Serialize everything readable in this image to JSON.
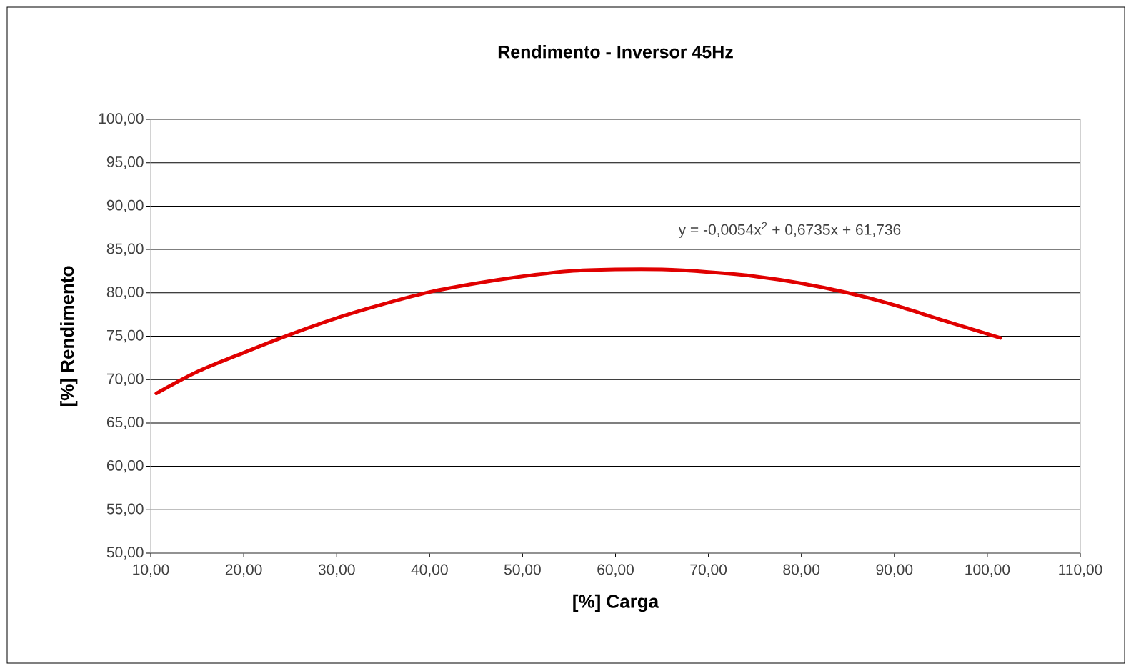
{
  "chart_data": {
    "type": "line",
    "title": "Rendimento - Inversor 45Hz",
    "xlabel": "[%] Carga",
    "ylabel": "[%] Rendimento",
    "x": [
      10.6,
      15,
      20,
      25,
      30,
      35,
      40,
      45,
      50,
      55,
      60,
      65,
      70,
      75,
      80,
      85,
      90,
      95,
      101.4
    ],
    "series": [
      {
        "color": "#e00000",
        "values": [
          68.4,
          70.9,
          73.1,
          75.2,
          77.1,
          78.7,
          80.1,
          81.1,
          81.9,
          82.5,
          82.7,
          82.7,
          82.4,
          81.9,
          81.1,
          80.0,
          78.6,
          76.9,
          74.8
        ]
      }
    ],
    "xlim": [
      10,
      110
    ],
    "ylim": [
      50,
      100
    ],
    "xticks": [
      {
        "value": 10,
        "label": "10,00"
      },
      {
        "value": 20,
        "label": "20,00"
      },
      {
        "value": 30,
        "label": "30,00"
      },
      {
        "value": 40,
        "label": "40,00"
      },
      {
        "value": 50,
        "label": "50,00"
      },
      {
        "value": 60,
        "label": "60,00"
      },
      {
        "value": 70,
        "label": "70,00"
      },
      {
        "value": 80,
        "label": "80,00"
      },
      {
        "value": 90,
        "label": "90,00"
      },
      {
        "value": 100,
        "label": "100,00"
      },
      {
        "value": 110,
        "label": "110,00"
      }
    ],
    "yticks": [
      {
        "value": 50,
        "label": "50,00"
      },
      {
        "value": 55,
        "label": "55,00"
      },
      {
        "value": 60,
        "label": "60,00"
      },
      {
        "value": 65,
        "label": "65,00"
      },
      {
        "value": 70,
        "label": "70,00"
      },
      {
        "value": 75,
        "label": "75,00"
      },
      {
        "value": 80,
        "label": "80,00"
      },
      {
        "value": 85,
        "label": "85,00"
      },
      {
        "value": 90,
        "label": "90,00"
      },
      {
        "value": 95,
        "label": "95,00"
      },
      {
        "value": 100,
        "label": "100,00"
      }
    ],
    "grid": "y",
    "marker": "none",
    "line_style": "solid",
    "annotations": [
      "y = -0,0054x$^{2}$ + 0,6735x + 61,736"
    ]
  }
}
